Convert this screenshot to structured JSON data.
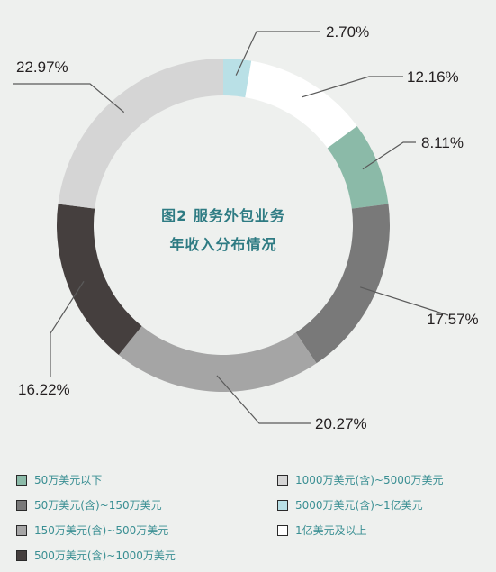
{
  "chart_data": {
    "type": "pie",
    "title_lines": [
      "图2  服务外包业务",
      "年收入分布情况"
    ],
    "series": [
      {
        "name": "5000万美元(含)~1亿美元",
        "value": 2.7,
        "label": "2.70%",
        "color": "#b9e0e6"
      },
      {
        "name": "1亿美元及以上",
        "value": 12.16,
        "label": "12.16%",
        "color": "#ffffff"
      },
      {
        "name": "50万美元以下",
        "value": 8.11,
        "label": "8.11%",
        "color": "#8bbaa8"
      },
      {
        "name": "50万美元(含)~150万美元",
        "value": 17.57,
        "label": "17.57%",
        "color": "#797979"
      },
      {
        "name": "150万美元(含)~500万美元",
        "value": 20.27,
        "label": "20.27%",
        "color": "#a5a5a5"
      },
      {
        "name": "500万美元(含)~1000万美元",
        "value": 16.22,
        "label": "16.22%",
        "color": "#453f3e"
      },
      {
        "name": "1000万美元(含)~5000万美元",
        "value": 22.97,
        "label": "22.97%",
        "color": "#d5d5d5"
      }
    ],
    "legend": [
      {
        "name": "50万美元以下",
        "color": "#8bbaa8"
      },
      {
        "name": "1000万美元(含)~5000万美元",
        "color": "#d5d5d5"
      },
      {
        "name": "50万美元(含)~150万美元",
        "color": "#797979"
      },
      {
        "name": "5000万美元(含)~1亿美元",
        "color": "#b9e0e6"
      },
      {
        "name": "150万美元(含)~500万美元",
        "color": "#a5a5a5"
      },
      {
        "name": "1亿美元及以上",
        "color": "#ffffff"
      },
      {
        "name": "500万美元(含)~1000万美元",
        "color": "#453f3e"
      }
    ],
    "legend_placement": "bottom"
  }
}
